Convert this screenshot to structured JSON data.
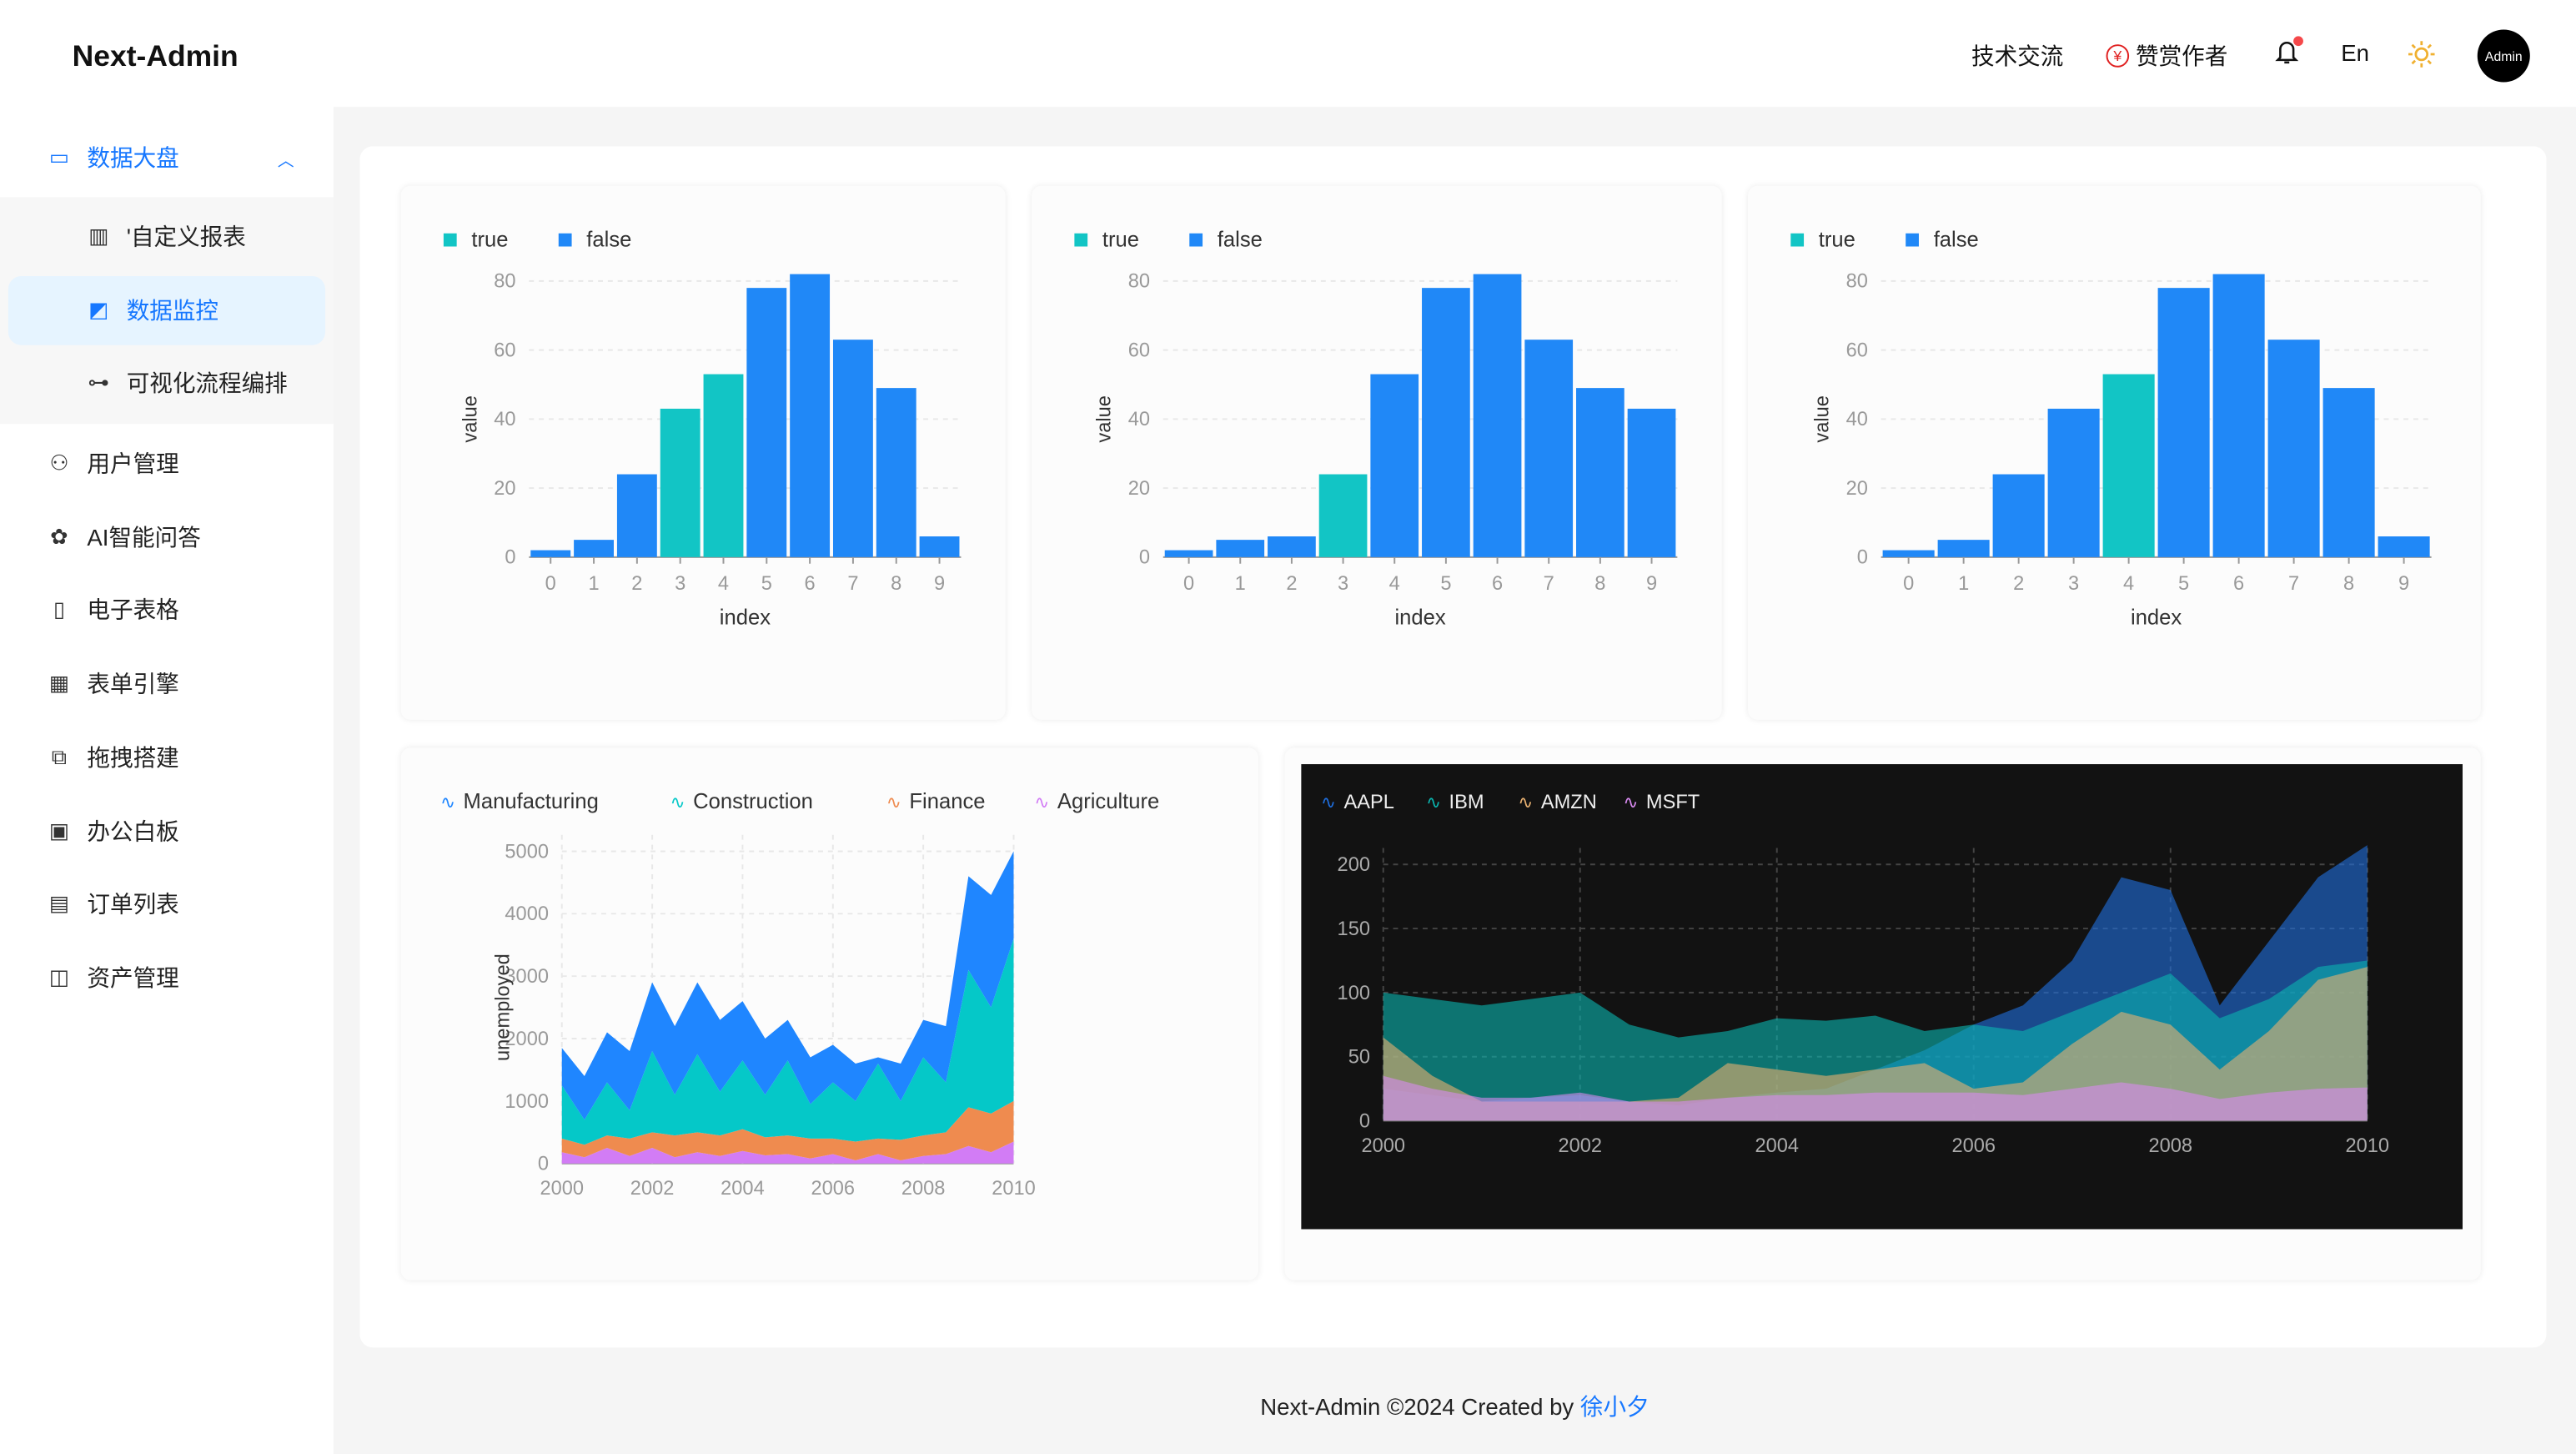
{
  "app": {
    "title": "Next-Admin"
  },
  "header": {
    "tech": "技术交流",
    "donate": "赞赏作者",
    "lang": "En",
    "avatar": "Admin",
    "has_notification": true,
    "icons": [
      "yen-refresh-icon",
      "bell-icon",
      "sun-icon"
    ]
  },
  "sidebar": {
    "group": {
      "label": "数据大盘",
      "icon": "monitor-icon",
      "expanded": true,
      "children": [
        {
          "label": "'自定义报表",
          "icon": "bar-chart-icon"
        },
        {
          "label": "数据监控",
          "icon": "line-chart-icon",
          "selected": true
        },
        {
          "label": "可视化流程编排",
          "icon": "flow-icon"
        }
      ]
    },
    "items": [
      {
        "label": "用户管理",
        "icon": "user-icon"
      },
      {
        "label": "AI智能问答",
        "icon": "openai-icon"
      },
      {
        "label": "电子表格",
        "icon": "excel-file-icon"
      },
      {
        "label": "表单引擎",
        "icon": "form-icon"
      },
      {
        "label": "拖拽搭建",
        "icon": "drag-build-icon"
      },
      {
        "label": "办公白板",
        "icon": "whiteboard-icon"
      },
      {
        "label": "订单列表",
        "icon": "calendar-list-icon"
      },
      {
        "label": "资产管理",
        "icon": "wallet-icon"
      }
    ]
  },
  "colors": {
    "accent": "#1677ff",
    "bar_true": "#12c5c5",
    "bar_false": "#2088f7",
    "selected_bg": "#e6f4ff"
  },
  "footer": {
    "text": "Next-Admin ©2024 Created by ",
    "author": "徐小夕"
  },
  "chart_data": [
    {
      "type": "bar",
      "legend": [
        "true",
        "false"
      ],
      "xlabel": "index",
      "ylabel": "value",
      "ylim": [
        0,
        80
      ],
      "yticks": [
        0,
        20,
        40,
        60,
        80
      ],
      "categories": [
        "0",
        "1",
        "2",
        "3",
        "4",
        "5",
        "6",
        "7",
        "8",
        "9"
      ],
      "values": [
        2,
        5,
        24,
        43,
        53,
        78,
        82,
        63,
        49,
        6
      ],
      "group": [
        "false",
        "false",
        "false",
        "true",
        "true",
        "false",
        "false",
        "false",
        "false",
        "false"
      ]
    },
    {
      "type": "bar",
      "legend": [
        "true",
        "false"
      ],
      "xlabel": "index",
      "ylabel": "value",
      "ylim": [
        0,
        80
      ],
      "yticks": [
        0,
        20,
        40,
        60,
        80
      ],
      "categories": [
        "0",
        "1",
        "2",
        "3",
        "4",
        "5",
        "6",
        "7",
        "8",
        "9"
      ],
      "values": [
        2,
        5,
        6,
        24,
        53,
        78,
        82,
        63,
        49,
        43
      ],
      "group": [
        "false",
        "false",
        "false",
        "true",
        "false",
        "false",
        "false",
        "false",
        "false",
        "false"
      ]
    },
    {
      "type": "bar",
      "legend": [
        "true",
        "false"
      ],
      "xlabel": "index",
      "ylabel": "value",
      "ylim": [
        0,
        80
      ],
      "yticks": [
        0,
        20,
        40,
        60,
        80
      ],
      "categories": [
        "0",
        "1",
        "2",
        "3",
        "4",
        "5",
        "6",
        "7",
        "8",
        "9"
      ],
      "values": [
        2,
        5,
        24,
        43,
        53,
        78,
        82,
        63,
        49,
        6
      ],
      "group": [
        "false",
        "false",
        "false",
        "false",
        "true",
        "false",
        "false",
        "false",
        "false",
        "false"
      ]
    },
    {
      "type": "area",
      "stacked": true,
      "ylabel": "unemployed",
      "ylim": [
        0,
        5000
      ],
      "yticks": [
        0,
        1000,
        2000,
        3000,
        4000,
        5000
      ],
      "xticks": [
        2000,
        2002,
        2004,
        2006,
        2008,
        2010
      ],
      "x": [
        2000,
        2000.5,
        2001,
        2001.5,
        2002,
        2002.5,
        2003,
        2003.5,
        2004,
        2004.5,
        2005,
        2005.5,
        2006,
        2006.5,
        2007,
        2007.5,
        2008,
        2008.5,
        2009,
        2009.5,
        2010
      ],
      "series": [
        {
          "name": "Agriculture",
          "color": "#d27cf5",
          "values": [
            180,
            100,
            250,
            120,
            250,
            100,
            180,
            120,
            200,
            130,
            150,
            80,
            150,
            50,
            150,
            50,
            120,
            150,
            280,
            180,
            350
          ]
        },
        {
          "name": "Finance",
          "color": "#ef8b4f",
          "values": [
            220,
            200,
            200,
            280,
            250,
            350,
            320,
            330,
            350,
            290,
            300,
            320,
            250,
            300,
            250,
            330,
            330,
            350,
            620,
            620,
            650
          ]
        },
        {
          "name": "Construction",
          "color": "#05c8c8",
          "values": [
            850,
            400,
            850,
            450,
            1300,
            650,
            1250,
            700,
            1100,
            680,
            1200,
            550,
            900,
            650,
            1200,
            620,
            1250,
            800,
            2200,
            1700,
            2600
          ]
        },
        {
          "name": "Manufacturing",
          "color": "#1f86ff",
          "values": [
            600,
            700,
            800,
            950,
            1100,
            1100,
            1150,
            1150,
            950,
            900,
            650,
            750,
            600,
            600,
            100,
            600,
            600,
            900,
            1500,
            1800,
            1400
          ]
        }
      ]
    },
    {
      "type": "area",
      "stacked": false,
      "theme": "dark",
      "ylim": [
        0,
        200
      ],
      "yticks": [
        0,
        50,
        100,
        150,
        200
      ],
      "xticks": [
        2000,
        2002,
        2004,
        2006,
        2008,
        2010
      ],
      "x": [
        2000,
        2000.5,
        2001,
        2001.5,
        2002,
        2002.5,
        2003,
        2003.5,
        2004,
        2004.5,
        2005,
        2005.5,
        2006,
        2006.5,
        2007,
        2007.5,
        2008,
        2008.5,
        2009,
        2009.5,
        2010
      ],
      "series": [
        {
          "name": "AAPL",
          "color": "#1f6fe0",
          "values": [
            25,
            20,
            15,
            18,
            20,
            15,
            12,
            18,
            22,
            25,
            40,
            55,
            75,
            90,
            125,
            190,
            180,
            90,
            140,
            190,
            215
          ]
        },
        {
          "name": "IBM",
          "color": "#0ab5b0",
          "values": [
            100,
            95,
            90,
            95,
            100,
            75,
            65,
            70,
            80,
            78,
            82,
            70,
            75,
            70,
            85,
            100,
            115,
            80,
            95,
            120,
            125
          ]
        },
        {
          "name": "AMZN",
          "color": "#e8b070",
          "values": [
            65,
            35,
            15,
            15,
            15,
            15,
            18,
            45,
            40,
            35,
            40,
            45,
            25,
            30,
            60,
            85,
            75,
            40,
            70,
            110,
            120
          ]
        },
        {
          "name": "MSFT",
          "color": "#d88af0",
          "values": [
            35,
            25,
            18,
            18,
            22,
            15,
            15,
            18,
            20,
            20,
            22,
            22,
            22,
            20,
            25,
            30,
            25,
            17,
            22,
            25,
            26
          ]
        }
      ]
    }
  ]
}
